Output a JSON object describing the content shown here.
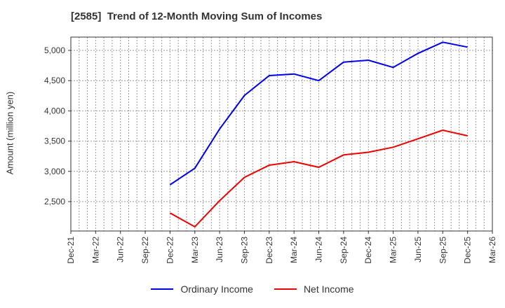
{
  "header": {
    "title": "[2585]  Trend of 12-Month Moving Sum of Incomes"
  },
  "legend": {
    "items": [
      {
        "label": "Ordinary Income",
        "color": "#0000ee"
      },
      {
        "label": "Net Income",
        "color": "#ee0000"
      }
    ]
  },
  "chart_data": {
    "type": "line",
    "title": "[2585]  Trend of 12-Month Moving Sum of Incomes",
    "xlabel": "",
    "ylabel": "Amount (million yen)",
    "x_ticks": [
      "Dec-21",
      "Mar-22",
      "Jun-22",
      "Sep-22",
      "Dec-22",
      "Mar-23",
      "Jun-23",
      "Sep-23",
      "Dec-23",
      "Mar-24",
      "Jun-24",
      "Sep-24",
      "Dec-24",
      "Mar-25",
      "Jun-25",
      "Sep-25",
      "Dec-25",
      "Mar-26"
    ],
    "y_ticks": [
      2500,
      3000,
      3500,
      4000,
      4500,
      5000
    ],
    "y_tick_labels": [
      "2,500",
      "3,000",
      "3,500",
      "4,000",
      "4,500",
      "5,000"
    ],
    "ylim": [
      2020,
      5210
    ],
    "grid": true,
    "legend_position": "bottom",
    "categories": [
      "Dec-22",
      "Mar-23",
      "Jun-23",
      "Sep-23",
      "Dec-23",
      "Mar-24",
      "Jun-24",
      "Sep-24",
      "Dec-24",
      "Mar-25",
      "Jun-25",
      "Sep-25",
      "Dec-25"
    ],
    "series": [
      {
        "name": "Ordinary Income",
        "color": "#0000ee",
        "values": [
          2778,
          3052,
          3700,
          4255,
          4583,
          4610,
          4500,
          4807,
          4838,
          4719,
          4950,
          5135,
          5054
        ]
      },
      {
        "name": "Net Income",
        "color": "#ee0000",
        "values": [
          2311,
          2083,
          2515,
          2901,
          3102,
          3160,
          3067,
          3272,
          3316,
          3399,
          3538,
          3681,
          3588
        ]
      }
    ]
  }
}
